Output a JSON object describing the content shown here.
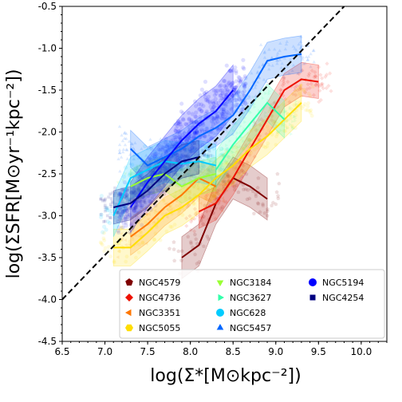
{
  "chart_data": {
    "type": "scatter",
    "title": "",
    "xlabel": "log(Σ*[M⊙kpc⁻²])",
    "ylabel": "log(ΣSFR[M⊙yr⁻¹kpc⁻²])",
    "xlim": [
      6.5,
      10.3
    ],
    "ylim": [
      -4.5,
      -0.5
    ],
    "x_ticks": [
      "6.5",
      "7.0",
      "7.5",
      "8.0",
      "8.5",
      "9.0",
      "9.5",
      "10.0"
    ],
    "y_ticks": [
      "-4.5",
      "-4.0",
      "-3.5",
      "-3.0",
      "-2.5",
      "-2.0",
      "-1.5",
      "-1.0",
      "-0.5"
    ],
    "grid": false,
    "legend_position": "bottom-right",
    "one_to_one_line": {
      "style": "dashed",
      "color": "#000000",
      "points": [
        [
          6.5,
          -4.0
        ],
        [
          9.8,
          -0.5
        ]
      ]
    },
    "series": [
      {
        "name": "NGC4579",
        "color": "#7f0000",
        "marker": "pentagon",
        "x": [
          7.9,
          8.1,
          8.3,
          8.5,
          8.7,
          8.9
        ],
        "y": [
          -3.5,
          -3.35,
          -2.85,
          -2.55,
          -2.65,
          -2.8
        ],
        "spread": 0.25
      },
      {
        "name": "NGC4736",
        "color": "#ee1100",
        "marker": "diamond",
        "x": [
          8.1,
          8.3,
          8.5,
          8.7,
          8.9,
          9.1,
          9.3,
          9.5
        ],
        "y": [
          -2.95,
          -2.85,
          -2.55,
          -2.2,
          -1.85,
          -1.5,
          -1.37,
          -1.4
        ],
        "spread": 0.2
      },
      {
        "name": "NGC3351",
        "color": "#ff7700",
        "marker": "triangle-left",
        "x": [
          7.3,
          7.5,
          7.7,
          7.9,
          8.1,
          8.3
        ],
        "y": [
          -3.25,
          -3.1,
          -2.9,
          -2.75,
          -2.55,
          -2.65
        ],
        "spread": 0.22
      },
      {
        "name": "NGC5055",
        "color": "#ffdd00",
        "marker": "hexagon",
        "x": [
          7.1,
          7.3,
          7.5,
          7.7,
          7.9,
          8.1,
          8.3,
          8.5,
          8.7,
          8.9,
          9.1,
          9.3
        ],
        "y": [
          -3.38,
          -3.38,
          -3.2,
          -3.0,
          -2.9,
          -2.75,
          -2.55,
          -2.4,
          -2.2,
          -2.05,
          -1.85,
          -1.65
        ],
        "spread": 0.22
      },
      {
        "name": "NGC3184",
        "color": "#99ff33",
        "marker": "triangle-down",
        "x": [
          7.3,
          7.5,
          7.7,
          7.9,
          8.1,
          8.3
        ],
        "y": [
          -2.65,
          -2.55,
          -2.5,
          -2.65,
          -2.55,
          -2.5
        ],
        "spread": 0.2
      },
      {
        "name": "NGC3627",
        "color": "#33ffaa",
        "marker": "triangle-right",
        "x": [
          8.3,
          8.5,
          8.7,
          8.9,
          9.1
        ],
        "y": [
          -2.45,
          -2.15,
          -1.9,
          -1.65,
          -1.85
        ],
        "spread": 0.22
      },
      {
        "name": "NGC628",
        "color": "#00ccff",
        "marker": "circle",
        "x": [
          7.1,
          7.3,
          7.5,
          7.7,
          7.9,
          8.1,
          8.3
        ],
        "y": [
          -3.0,
          -2.55,
          -2.45,
          -2.35,
          -2.38,
          -2.35,
          -2.4
        ],
        "spread": 0.25
      },
      {
        "name": "NGC5457",
        "color": "#0066ff",
        "marker": "triangle-up",
        "x": [
          7.3,
          7.5,
          7.7,
          7.9,
          8.1,
          8.3,
          8.5,
          8.7,
          8.9,
          9.1,
          9.3
        ],
        "y": [
          -2.2,
          -2.4,
          -2.3,
          -2.2,
          -2.05,
          -1.95,
          -1.8,
          -1.5,
          -1.15,
          -1.1,
          -1.07
        ],
        "spread": 0.22
      },
      {
        "name": "NGC5194",
        "color": "#0000ff",
        "marker": "circle",
        "x": [
          7.3,
          7.5,
          7.7,
          7.9,
          8.1,
          8.3,
          8.5
        ],
        "y": [
          -2.9,
          -2.6,
          -2.35,
          -2.1,
          -1.9,
          -1.75,
          -1.5
        ],
        "spread": 0.3
      },
      {
        "name": "NGC4254",
        "color": "#000080",
        "marker": "square",
        "x": [
          7.1,
          7.3,
          7.5,
          7.7,
          7.9,
          8.1
        ],
        "y": [
          -2.9,
          -2.85,
          -2.7,
          -2.5,
          -2.35,
          -2.3
        ],
        "spread": 0.2
      }
    ]
  }
}
